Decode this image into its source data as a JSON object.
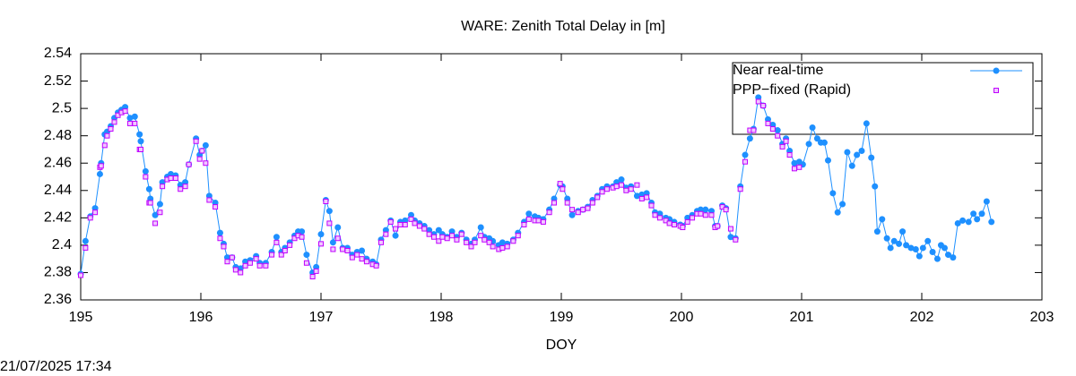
{
  "chart_data": {
    "type": "line",
    "title": "WARE: Zenith Total Delay in [m]",
    "xlabel": "DOY",
    "timestamp": "21/07/2025 17:34",
    "xlim": [
      195,
      203
    ],
    "xticks": [
      195,
      196,
      197,
      198,
      199,
      200,
      201,
      202,
      203
    ],
    "ylim": [
      2.36,
      2.54
    ],
    "yticks": [
      2.36,
      2.38,
      2.4,
      2.42,
      2.44,
      2.46,
      2.48,
      2.5,
      2.52,
      2.54
    ],
    "grid": false,
    "legend": "top-right",
    "series": [
      {
        "name": "Near real-time",
        "color": "#1e90ff",
        "marker": "circle",
        "x": [
          195.0,
          195.04,
          195.08,
          195.12,
          195.16,
          195.17,
          195.2,
          195.22,
          195.25,
          195.28,
          195.31,
          195.34,
          195.37,
          195.41,
          195.45,
          195.49,
          195.5,
          195.54,
          195.57,
          195.58,
          195.62,
          195.66,
          195.68,
          195.72,
          195.75,
          195.79,
          195.83,
          195.87,
          195.9,
          195.96,
          195.99,
          196.01,
          196.04,
          196.07,
          196.12,
          196.16,
          196.19,
          196.22,
          196.26,
          196.29,
          196.33,
          196.37,
          196.41,
          196.46,
          196.49,
          196.54,
          196.59,
          196.63,
          196.67,
          196.7,
          196.74,
          196.78,
          196.81,
          196.84,
          196.88,
          196.93,
          196.96,
          197.0,
          197.04,
          197.07,
          197.1,
          197.14,
          197.18,
          197.22,
          197.26,
          197.3,
          197.34,
          197.38,
          197.43,
          197.46,
          197.5,
          197.54,
          197.58,
          197.62,
          197.66,
          197.7,
          197.75,
          197.78,
          197.82,
          197.86,
          197.9,
          197.94,
          197.98,
          198.01,
          198.05,
          198.09,
          198.13,
          198.17,
          198.21,
          198.25,
          198.28,
          198.33,
          198.36,
          198.4,
          198.43,
          198.48,
          198.51,
          198.55,
          198.6,
          198.64,
          198.69,
          198.73,
          198.78,
          198.81,
          198.85,
          198.9,
          198.94,
          198.99,
          199.01,
          199.05,
          199.09,
          199.14,
          199.18,
          199.22,
          199.26,
          199.3,
          199.34,
          199.38,
          199.43,
          199.46,
          199.5,
          199.54,
          199.58,
          199.63,
          199.67,
          199.71,
          199.75,
          199.78,
          199.82,
          199.87,
          199.9,
          199.94,
          199.99,
          200.01,
          200.05,
          200.09,
          200.13,
          200.16,
          200.2,
          200.25,
          200.28,
          200.3,
          200.34,
          200.37,
          200.41,
          200.45,
          200.49,
          200.53,
          200.57,
          200.6,
          200.64,
          200.68,
          200.72,
          200.76,
          200.8,
          200.84,
          200.87,
          200.9,
          200.94,
          200.98,
          201.01,
          201.06,
          201.09,
          201.13,
          201.16,
          201.19,
          201.22,
          201.26,
          201.3,
          201.34,
          201.38,
          201.42,
          201.46,
          201.5,
          201.54,
          201.58,
          201.61,
          201.63,
          201.67,
          201.71,
          201.74,
          201.77,
          201.81,
          201.84,
          201.87,
          201.91,
          201.95,
          201.98,
          202.01,
          202.05,
          202.09,
          202.13,
          202.16,
          202.19,
          202.22,
          202.26,
          202.3,
          202.34,
          202.39,
          202.43,
          202.46,
          202.5,
          202.54,
          202.58
        ],
        "values": [
          2.379,
          2.403,
          2.421,
          2.427,
          2.452,
          2.46,
          2.481,
          2.483,
          2.487,
          2.493,
          2.497,
          2.499,
          2.501,
          2.493,
          2.494,
          2.481,
          2.476,
          2.454,
          2.441,
          2.434,
          2.422,
          2.43,
          2.446,
          2.45,
          2.452,
          2.451,
          2.444,
          2.446,
          2.459,
          2.478,
          2.466,
          2.469,
          2.473,
          2.436,
          2.431,
          2.409,
          2.401,
          2.391,
          2.391,
          2.384,
          2.383,
          2.388,
          2.389,
          2.392,
          2.387,
          2.387,
          2.395,
          2.406,
          2.395,
          2.398,
          2.402,
          2.407,
          2.41,
          2.41,
          2.393,
          2.38,
          2.384,
          2.408,
          2.433,
          2.425,
          2.402,
          2.413,
          2.398,
          2.398,
          2.393,
          2.395,
          2.396,
          2.39,
          2.388,
          2.386,
          2.404,
          2.411,
          2.418,
          2.407,
          2.417,
          2.418,
          2.422,
          2.418,
          2.416,
          2.414,
          2.411,
          2.408,
          2.411,
          2.408,
          2.406,
          2.41,
          2.406,
          2.409,
          2.404,
          2.401,
          2.404,
          2.413,
          2.406,
          2.405,
          2.403,
          2.4,
          2.402,
          2.401,
          2.404,
          2.409,
          2.417,
          2.423,
          2.421,
          2.42,
          2.419,
          2.426,
          2.434,
          2.444,
          2.443,
          2.434,
          2.422,
          2.425,
          2.426,
          2.428,
          2.433,
          2.436,
          2.441,
          2.443,
          2.443,
          2.446,
          2.448,
          2.442,
          2.443,
          2.436,
          2.437,
          2.438,
          2.431,
          2.424,
          2.423,
          2.42,
          2.419,
          2.417,
          2.415,
          2.414,
          2.42,
          2.422,
          2.425,
          2.426,
          2.426,
          2.425,
          2.414,
          2.414,
          2.429,
          2.427,
          2.406,
          2.405,
          2.443,
          2.466,
          2.478,
          2.485,
          2.508,
          2.502,
          2.492,
          2.488,
          2.484,
          2.474,
          2.478,
          2.469,
          2.46,
          2.461,
          2.459,
          2.474,
          2.486,
          2.478,
          2.475,
          2.475,
          2.462,
          2.438,
          2.424,
          2.43,
          2.468,
          2.458,
          2.466,
          2.469,
          2.489,
          2.464,
          2.443,
          2.41,
          2.419,
          2.405,
          2.398,
          2.403,
          2.401,
          2.41,
          2.4,
          2.398,
          2.397,
          2.392,
          2.398,
          2.403,
          2.395,
          2.39,
          2.4,
          2.398,
          2.393,
          2.391,
          2.416,
          2.418,
          2.417,
          2.423,
          2.419,
          2.423,
          2.432,
          2.417
        ]
      },
      {
        "name": "PPP−fixed (Rapid)",
        "color": "#c000ff",
        "marker": "square",
        "x": [
          195.0,
          195.04,
          195.08,
          195.12,
          195.16,
          195.17,
          195.2,
          195.22,
          195.25,
          195.28,
          195.31,
          195.34,
          195.37,
          195.41,
          195.45,
          195.49,
          195.5,
          195.54,
          195.57,
          195.58,
          195.62,
          195.66,
          195.68,
          195.72,
          195.75,
          195.79,
          195.83,
          195.87,
          195.9,
          195.96,
          195.99,
          196.01,
          196.04,
          196.07,
          196.12,
          196.16,
          196.19,
          196.22,
          196.26,
          196.29,
          196.33,
          196.37,
          196.41,
          196.46,
          196.49,
          196.54,
          196.59,
          196.63,
          196.67,
          196.7,
          196.74,
          196.78,
          196.81,
          196.84,
          196.88,
          196.93,
          196.96,
          197.0,
          197.04,
          197.07,
          197.1,
          197.14,
          197.18,
          197.22,
          197.26,
          197.3,
          197.34,
          197.38,
          197.43,
          197.46,
          197.5,
          197.54,
          197.58,
          197.62,
          197.66,
          197.7,
          197.75,
          197.78,
          197.82,
          197.86,
          197.9,
          197.94,
          197.98,
          198.01,
          198.05,
          198.09,
          198.13,
          198.17,
          198.21,
          198.25,
          198.28,
          198.33,
          198.36,
          198.4,
          198.43,
          198.48,
          198.51,
          198.55,
          198.6,
          198.64,
          198.69,
          198.73,
          198.78,
          198.81,
          198.85,
          198.9,
          198.94,
          198.99,
          199.01,
          199.05,
          199.09,
          199.14,
          199.18,
          199.22,
          199.26,
          199.3,
          199.34,
          199.38,
          199.43,
          199.46,
          199.5,
          199.54,
          199.58,
          199.63,
          199.67,
          199.71,
          199.75,
          199.78,
          199.82,
          199.87,
          199.9,
          199.94,
          199.99,
          200.01,
          200.05,
          200.09,
          200.13,
          200.16,
          200.2,
          200.25,
          200.28,
          200.3,
          200.34,
          200.37,
          200.41,
          200.45,
          200.49,
          200.53,
          200.57,
          200.6,
          200.64,
          200.68,
          200.72,
          200.76,
          200.8,
          200.84,
          200.87,
          200.9,
          200.94,
          200.98
        ],
        "values": [
          2.378,
          2.398,
          2.42,
          2.424,
          2.457,
          2.458,
          2.473,
          2.48,
          2.485,
          2.49,
          2.495,
          2.497,
          2.498,
          2.489,
          2.489,
          2.47,
          2.47,
          2.45,
          2.431,
          2.431,
          2.416,
          2.424,
          2.443,
          2.448,
          2.449,
          2.449,
          2.441,
          2.443,
          2.459,
          2.476,
          2.463,
          2.469,
          2.46,
          2.433,
          2.428,
          2.405,
          2.399,
          2.388,
          2.391,
          2.382,
          2.38,
          2.385,
          2.387,
          2.39,
          2.385,
          2.385,
          2.393,
          2.402,
          2.393,
          2.396,
          2.4,
          2.405,
          2.407,
          2.406,
          2.387,
          2.377,
          2.381,
          2.401,
          2.432,
          2.416,
          2.397,
          2.405,
          2.397,
          2.396,
          2.391,
          2.393,
          2.39,
          2.388,
          2.386,
          2.385,
          2.402,
          2.408,
          2.417,
          2.412,
          2.415,
          2.415,
          2.419,
          2.416,
          2.414,
          2.412,
          2.408,
          2.406,
          2.403,
          2.406,
          2.405,
          2.407,
          2.404,
          2.408,
          2.402,
          2.399,
          2.402,
          2.407,
          2.404,
          2.402,
          2.399,
          2.397,
          2.398,
          2.399,
          2.403,
          2.407,
          2.415,
          2.419,
          2.418,
          2.418,
          2.417,
          2.424,
          2.431,
          2.445,
          2.441,
          2.431,
          2.426,
          2.424,
          2.426,
          2.427,
          2.431,
          2.435,
          2.439,
          2.441,
          2.442,
          2.443,
          2.444,
          2.44,
          2.441,
          2.444,
          2.434,
          2.435,
          2.429,
          2.422,
          2.42,
          2.418,
          2.416,
          2.415,
          2.414,
          2.413,
          2.417,
          2.42,
          2.423,
          2.423,
          2.422,
          2.422,
          2.413,
          2.414,
          2.428,
          2.426,
          2.412,
          2.404,
          2.441,
          2.461,
          2.484,
          2.484,
          2.505,
          2.502,
          2.489,
          2.485,
          2.48,
          2.472,
          2.476,
          2.466,
          2.456,
          2.457
        ]
      }
    ]
  }
}
